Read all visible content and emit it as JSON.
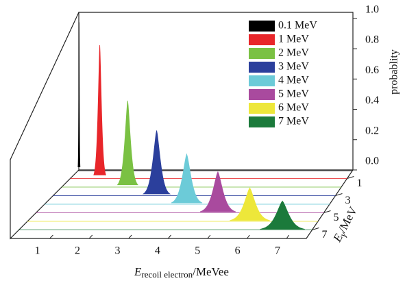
{
  "chart_data": {
    "type": "waterfall",
    "xlabel": {
      "symbol": "E",
      "subscript": "recoil electron",
      "unit": "/MeVee"
    },
    "ylabel": "probablity",
    "depth_label": {
      "symbol": "E",
      "subscript": "γ",
      "unit": "/MeV"
    },
    "xlim": [
      0,
      7.5
    ],
    "xticks": [
      1,
      2,
      3,
      4,
      5,
      6,
      7
    ],
    "ylim": [
      0,
      1.04
    ],
    "yticks": [
      {
        "value": 0,
        "label": "0.0"
      },
      0.2,
      0.4,
      0.6,
      0.8,
      {
        "value": 1,
        "label": "1.0"
      }
    ],
    "depth_lim": [
      0,
      8
    ],
    "depth_ticks": [
      1,
      3,
      5,
      7
    ],
    "legend": "upper right",
    "series": [
      {
        "name": "0.1 MeV",
        "color": "#000000",
        "energy": 0.1,
        "peak": 0.03,
        "fwhm": 0.02,
        "value": 0.98
      },
      {
        "name": "1 MeV",
        "color": "#e8262a",
        "energy": 1,
        "peak": 0.8,
        "fwhm": 0.12,
        "value": 0.88
      },
      {
        "name": "2 MeV",
        "color": "#7ac143",
        "energy": 2,
        "peak": 1.77,
        "fwhm": 0.2,
        "value": 0.57
      },
      {
        "name": "3 MeV",
        "color": "#2b3f9c",
        "energy": 3,
        "peak": 2.75,
        "fwhm": 0.26,
        "value": 0.43
      },
      {
        "name": "4 MeV",
        "color": "#6ccbd8",
        "energy": 4,
        "peak": 3.74,
        "fwhm": 0.3,
        "value": 0.33
      },
      {
        "name": "5 MeV",
        "color": "#a94a9e",
        "energy": 5,
        "peak": 4.74,
        "fwhm": 0.34,
        "value": 0.27
      },
      {
        "name": "6 MeV",
        "color": "#ede73a",
        "energy": 6,
        "peak": 5.74,
        "fwhm": 0.38,
        "value": 0.22
      },
      {
        "name": "7 MeV",
        "color": "#1b7a3b",
        "energy": 7,
        "peak": 6.74,
        "fwhm": 0.42,
        "value": 0.19
      }
    ]
  }
}
